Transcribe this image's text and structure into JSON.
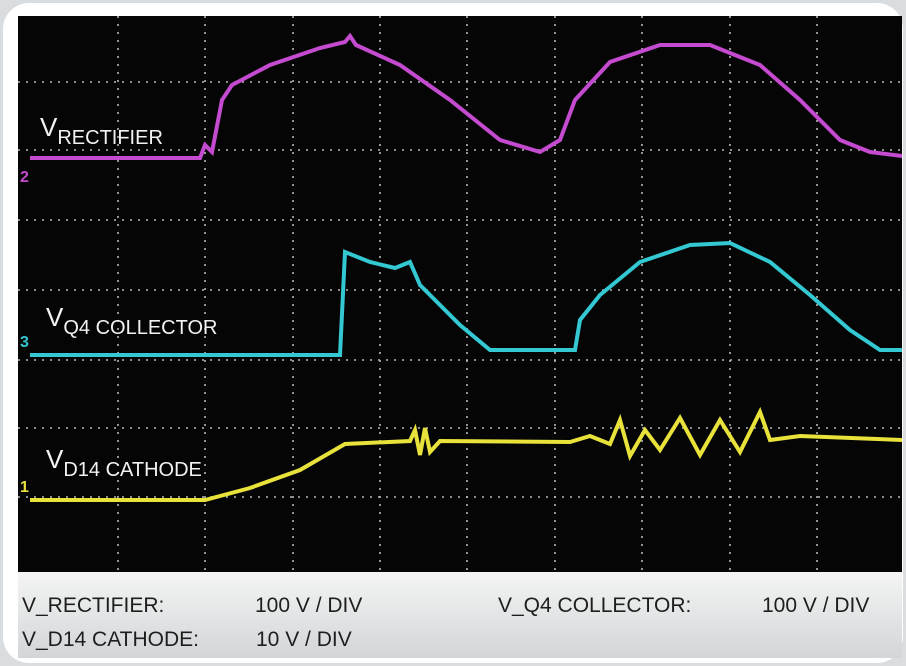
{
  "traces": [
    {
      "channel": "2",
      "symbol": "V",
      "subscript": "RECTIFIER"
    },
    {
      "channel": "3",
      "symbol": "V",
      "subscript": "Q4 COLLECTOR"
    },
    {
      "channel": "1",
      "symbol": "V",
      "subscript": "D14 CATHODE"
    }
  ],
  "footer": {
    "rows": [
      [
        "V_RECTIFIER:",
        "100 V / DIV",
        "V_Q4 COLLECTOR:",
        "100 V / DIV"
      ],
      [
        "V_D14 CATHODE:",
        "10 V / DIV"
      ]
    ]
  }
}
